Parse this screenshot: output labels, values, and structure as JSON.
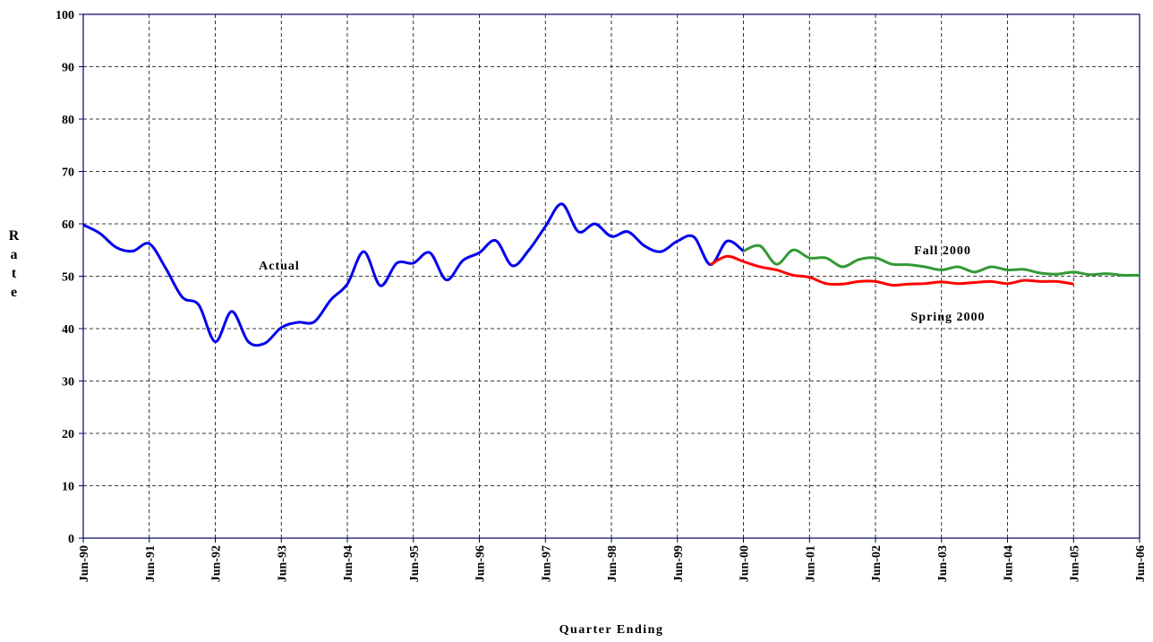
{
  "chart_data": {
    "type": "line",
    "y_axis_label": "Rate",
    "x_axis_label": "Quarter Ending",
    "annotations": [
      {
        "text": "Actual",
        "color": "#0000ee"
      },
      {
        "text": "Fall 2000",
        "color": "#339933"
      },
      {
        "text": "Spring 2000",
        "color": "#ff0000"
      }
    ],
    "categories": [
      "Jun-90",
      null,
      null,
      null,
      "Jun-91",
      null,
      null,
      null,
      "Jun-92",
      null,
      null,
      null,
      "Jun-93",
      null,
      null,
      null,
      "Jun-94",
      null,
      null,
      null,
      "Jun-95",
      null,
      null,
      null,
      "Jun-96",
      null,
      null,
      null,
      "Jun-97",
      null,
      null,
      null,
      "Jun-98",
      null,
      null,
      null,
      "Jun-99",
      null,
      null,
      null,
      "Jun-00",
      null,
      null,
      null,
      "Jun-01",
      null,
      null,
      null,
      "Jun-02",
      null,
      null,
      null,
      "Jun-03",
      null,
      null,
      null,
      "Jun-04",
      null,
      null,
      null,
      "Jun-05",
      null,
      null,
      null,
      "Jun-06"
    ],
    "series": [
      {
        "name": "Actual",
        "color": "#0000ee",
        "values": [
          59.8,
          58.2,
          55.5,
          54.8,
          56.2,
          51.5,
          46,
          44.5,
          37.5,
          43.3,
          37.5,
          37.2,
          40.2,
          41.2,
          41.3,
          45.5,
          48.5,
          54.7,
          48.2,
          52.5,
          52.5,
          54.5,
          49.3,
          53,
          54.5,
          56.8,
          52,
          55,
          59.5,
          63.8,
          58.5,
          60,
          57.6,
          58.5,
          55.8,
          54.7,
          56.7,
          57.5,
          52.2,
          56.7,
          54.8,
          null,
          null,
          null,
          null,
          null,
          null,
          null,
          null,
          null,
          null,
          null,
          null,
          null,
          null,
          null,
          null,
          null,
          null,
          null,
          null,
          null,
          null,
          null,
          null
        ]
      },
      {
        "name": "Fall 2000",
        "color": "#339933",
        "values": [
          null,
          null,
          null,
          null,
          null,
          null,
          null,
          null,
          null,
          null,
          null,
          null,
          null,
          null,
          null,
          null,
          null,
          null,
          null,
          null,
          null,
          null,
          null,
          null,
          null,
          null,
          null,
          null,
          null,
          null,
          null,
          null,
          null,
          null,
          null,
          null,
          null,
          null,
          null,
          null,
          54.8,
          55.8,
          52.3,
          55,
          53.5,
          53.5,
          51.8,
          53.2,
          53.5,
          52.3,
          52.2,
          51.8,
          51.2,
          51.8,
          50.8,
          51.8,
          51.2,
          51.3,
          50.6,
          50.4,
          50.8,
          50.3,
          50.5,
          50.2,
          50.2
        ]
      },
      {
        "name": "Spring 2000",
        "color": "#ff0000",
        "values": [
          null,
          null,
          null,
          null,
          null,
          null,
          null,
          null,
          null,
          null,
          null,
          null,
          null,
          null,
          null,
          null,
          null,
          null,
          null,
          null,
          null,
          null,
          null,
          null,
          null,
          null,
          null,
          null,
          null,
          null,
          null,
          null,
          null,
          null,
          null,
          null,
          null,
          null,
          52.2,
          53.8,
          52.8,
          51.8,
          51.2,
          50.2,
          49.8,
          48.6,
          48.5,
          49,
          49,
          48.3,
          48.5,
          48.6,
          48.9,
          48.6,
          48.8,
          49,
          48.6,
          49.2,
          49,
          49,
          48.5,
          null,
          null,
          null,
          null
        ]
      }
    ],
    "ylim": [
      0,
      100
    ],
    "yticks": [
      0,
      10,
      20,
      30,
      40,
      50,
      60,
      70,
      80,
      90,
      100
    ],
    "grid": true
  }
}
